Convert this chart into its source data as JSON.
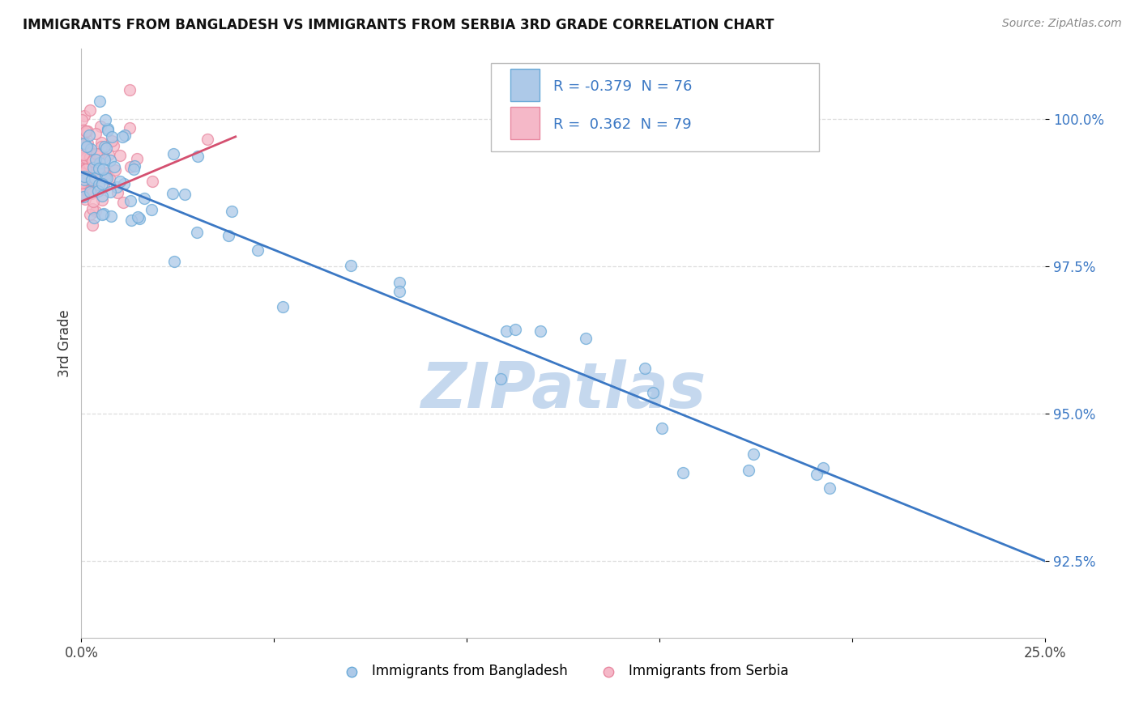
{
  "title": "IMMIGRANTS FROM BANGLADESH VS IMMIGRANTS FROM SERBIA 3RD GRADE CORRELATION CHART",
  "source": "Source: ZipAtlas.com",
  "ylabel": "3rd Grade",
  "x_min": 0.0,
  "x_max": 25.0,
  "y_min": 91.2,
  "y_max": 101.2,
  "bangladesh_R": -0.379,
  "bangladesh_N": 76,
  "serbia_R": 0.362,
  "serbia_N": 79,
  "blue_color": "#adc9e8",
  "blue_edge": "#6aaad8",
  "blue_trend": "#3b78c4",
  "pink_color": "#f5b8c8",
  "pink_edge": "#e888a0",
  "pink_trend": "#d45070",
  "watermark_color": "#c5d8ee",
  "background_color": "#ffffff",
  "grid_color": "#dddddd",
  "legend_blue_label": "Immigrants from Bangladesh",
  "legend_pink_label": "Immigrants from Serbia",
  "bang_trend_x0": 0.0,
  "bang_trend_y0": 99.1,
  "bang_trend_x1": 25.0,
  "bang_trend_y1": 92.5,
  "serb_trend_x0": 0.0,
  "serb_trend_y0": 98.6,
  "serb_trend_x1": 4.0,
  "serb_trend_y1": 99.7
}
